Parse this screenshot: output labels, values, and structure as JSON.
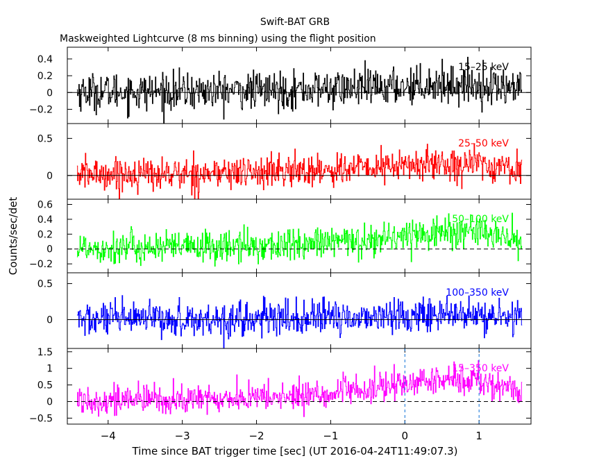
{
  "chart_data": {
    "type": "line",
    "title": "Swift-BAT GRB",
    "subtitle": "Maskweighted Lightcurve (8 ms binning) using the flight position",
    "xlabel": "Time since BAT trigger time [sec] (UT 2016-04-24T11:49:07.3)",
    "ylabel": "Counts/sec/det",
    "xlim": [
      -4.55,
      1.7
    ],
    "x_ticks": [
      -4,
      -3,
      -2,
      -1,
      0,
      1
    ],
    "x_tick_labels": [
      "−4",
      "−3",
      "−2",
      "−1",
      "0",
      "1"
    ],
    "t_start": -4.42,
    "t_end": 1.58,
    "bin_width_sec": 0.008,
    "markers_x": [
      0,
      1.0
    ],
    "panels": [
      {
        "name": "15-25 keV",
        "label": "15–25 keV",
        "color": "#000000",
        "ylim": [
          -0.37,
          0.54
        ],
        "y_ticks": [
          0.4,
          0.2,
          0,
          -0.2
        ],
        "y_tick_labels": [
          "0.4",
          "0.2",
          "0",
          "−0.2"
        ],
        "baseline_style": "solid",
        "noise_sigma": 0.11,
        "signal": [
          [
            -4.42,
            0.01
          ],
          [
            -3.0,
            0.01
          ],
          [
            -1.5,
            0.03
          ],
          [
            -0.3,
            0.06
          ],
          [
            0.3,
            0.1
          ],
          [
            0.9,
            0.09
          ],
          [
            1.58,
            0.05
          ]
        ]
      },
      {
        "name": "25-50 keV",
        "label": "25–50 keV",
        "color": "#ff0000",
        "ylim": [
          -0.32,
          0.7
        ],
        "y_ticks": [
          0.5,
          0
        ],
        "y_tick_labels": [
          "0.5",
          "0"
        ],
        "baseline_style": "solid",
        "noise_sigma": 0.11,
        "signal": [
          [
            -4.42,
            0.02
          ],
          [
            -3.0,
            0.02
          ],
          [
            -1.5,
            0.06
          ],
          [
            -0.5,
            0.1
          ],
          [
            0.3,
            0.15
          ],
          [
            0.9,
            0.16
          ],
          [
            1.58,
            0.07
          ]
        ]
      },
      {
        "name": "50-100 keV",
        "label": "50–100 keV",
        "color": "#00ff00",
        "ylim": [
          -0.32,
          0.67
        ],
        "y_ticks": [
          0.6,
          0.4,
          0.2,
          0,
          -0.2
        ],
        "y_tick_labels": [
          "0.6",
          "0.4",
          "0.2",
          "0",
          "−0.2"
        ],
        "baseline_style": "dashed",
        "noise_sigma": 0.11,
        "signal": [
          [
            -4.42,
            0.02
          ],
          [
            -3.0,
            0.02
          ],
          [
            -1.5,
            0.05
          ],
          [
            -0.5,
            0.12
          ],
          [
            0.3,
            0.22
          ],
          [
            0.9,
            0.24
          ],
          [
            1.58,
            0.1
          ]
        ]
      },
      {
        "name": "100-350 keV",
        "label": "100–350 keV",
        "color": "#0000ff",
        "ylim": [
          -0.4,
          0.65
        ],
        "y_ticks": [
          0.5,
          0
        ],
        "y_tick_labels": [
          "0.5",
          "0"
        ],
        "baseline_style": "solid",
        "noise_sigma": 0.12,
        "signal": [
          [
            -4.42,
            0.0
          ],
          [
            -3.0,
            0.0
          ],
          [
            -1.5,
            0.01
          ],
          [
            -0.5,
            0.04
          ],
          [
            0.3,
            0.07
          ],
          [
            0.9,
            0.05
          ],
          [
            1.58,
            0.02
          ]
        ]
      },
      {
        "name": "15-350 keV",
        "label": "15–350 keV",
        "color": "#ff00ff",
        "ylim": [
          -0.68,
          1.6
        ],
        "y_ticks": [
          1.5,
          1,
          0.5,
          0,
          -0.5
        ],
        "y_tick_labels": [
          "1.5",
          "1",
          "0.5",
          "0",
          "−0.5"
        ],
        "baseline_style": "dashed",
        "noise_sigma": 0.22,
        "signal": [
          [
            -4.42,
            0.05
          ],
          [
            -3.0,
            0.05
          ],
          [
            -1.5,
            0.15
          ],
          [
            -0.5,
            0.35
          ],
          [
            0.3,
            0.62
          ],
          [
            0.9,
            0.68
          ],
          [
            1.58,
            0.28
          ]
        ]
      }
    ]
  }
}
